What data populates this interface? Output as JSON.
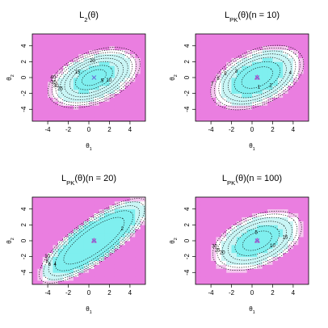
{
  "colors": {
    "low": "#7fefef",
    "mid": "#c9f5f5",
    "white": "#ffffff",
    "pink_light": "#f5c6ef",
    "pink": "#ea7ee0",
    "marker": "#6a6ad8",
    "contour": "#000000"
  },
  "chart_data": [
    {
      "type": "heatmap",
      "title_main": "L",
      "title_sub": "2",
      "title_suffix": "(θ)",
      "xlabel_main": "θ",
      "xlabel_sub": "1",
      "ylabel_main": "θ",
      "ylabel_sub": "2",
      "xlim": [
        -5.5,
        5.5
      ],
      "ylim": [
        -5.5,
        5.5
      ],
      "x_ticks": [
        -4,
        -2,
        0,
        2,
        4
      ],
      "x_tick_labels": [
        "-4",
        "-2",
        "0",
        "2",
        "4"
      ],
      "y_ticks": [
        -4,
        -2,
        0,
        2,
        4
      ],
      "y_tick_labels": [
        "-4",
        "-2",
        "0",
        "2",
        "4"
      ],
      "grid": false,
      "center": [
        0.5,
        0.0
      ],
      "marker": "x",
      "ellipse_angle_deg": 35,
      "ellipse_axis_ratio": 1.65,
      "contour_levels": [
        {
          "value": 5,
          "label": "5"
        },
        {
          "value": 10,
          "label": "10"
        },
        {
          "value": 15,
          "label": "15"
        },
        {
          "value": 20,
          "label": "20"
        },
        {
          "value": 25,
          "label": "25"
        },
        {
          "value": 30,
          "label": "30"
        },
        {
          "value": 35,
          "label": "35"
        },
        {
          "value": 40,
          "label": "40"
        }
      ],
      "contour_radii": [
        0.95,
        1.45,
        1.9,
        2.3,
        2.65,
        3.0,
        3.3,
        3.6
      ],
      "label_angles_deg": [
        -70,
        -60,
        110,
        70,
        160,
        150,
        140,
        130
      ],
      "fill_levels": [
        1.7,
        2.9,
        3.3,
        3.55
      ]
    },
    {
      "type": "heatmap",
      "title_main": "L",
      "title_sub": "PK",
      "title_suffix": "(θ)(n = 10)",
      "xlabel_main": "θ",
      "xlabel_sub": "1",
      "ylabel_main": "θ",
      "ylabel_sub": "2",
      "xlim": [
        -5.5,
        5.5
      ],
      "ylim": [
        -5.5,
        5.5
      ],
      "x_ticks": [
        -4,
        -2,
        0,
        2,
        4
      ],
      "x_tick_labels": [
        "-4",
        "-2",
        "0",
        "2",
        "4"
      ],
      "y_ticks": [
        -4,
        -2,
        0,
        2,
        4
      ],
      "y_tick_labels": [
        "-4",
        "-2",
        "0",
        "2",
        "4"
      ],
      "grid": false,
      "center": [
        0.5,
        0.0
      ],
      "marker": "x-triangle",
      "ellipse_angle_deg": 38,
      "ellipse_axis_ratio": 1.6,
      "contour_levels": [
        {
          "value": 1,
          "label": "1"
        },
        {
          "value": 2,
          "label": "2"
        },
        {
          "value": 3,
          "label": "3"
        },
        {
          "value": 4,
          "label": "4"
        },
        {
          "value": 5,
          "label": "5"
        },
        {
          "value": 6,
          "label": "6"
        },
        {
          "value": 7,
          "label": "7"
        }
      ],
      "contour_radii": [
        1.25,
        1.85,
        2.35,
        2.75,
        3.1,
        3.45,
        3.75
      ],
      "label_angles_deg": [
        -110,
        -80,
        110,
        -40,
        120,
        130,
        140
      ],
      "fill_levels": [
        2.1,
        3.1,
        3.45,
        3.7
      ]
    },
    {
      "type": "heatmap",
      "title_main": "L",
      "title_sub": "PK",
      "title_suffix": "(θ)(n = 20)",
      "xlabel_main": "θ",
      "xlabel_sub": "1",
      "ylabel_main": "θ",
      "ylabel_sub": "2",
      "xlim": [
        -5.5,
        5.5
      ],
      "ylim": [
        -5.5,
        5.5
      ],
      "x_ticks": [
        -4,
        -2,
        0,
        2,
        4
      ],
      "x_tick_labels": [
        "-4",
        "-2",
        "0",
        "2",
        "4"
      ],
      "y_ticks": [
        -4,
        -2,
        0,
        2,
        4
      ],
      "y_tick_labels": [
        "-4",
        "-2",
        "0",
        "2",
        "4"
      ],
      "grid": false,
      "center": [
        0.5,
        0.0
      ],
      "marker": "x-triangle",
      "ellipse_angle_deg": 45,
      "ellipse_axis_ratio": 3.0,
      "contour_levels": [
        {
          "value": 2,
          "label": "2"
        },
        {
          "value": 4,
          "label": "4"
        },
        {
          "value": 6,
          "label": "6"
        },
        {
          "value": 8,
          "label": "8"
        },
        {
          "value": 10,
          "label": "10"
        }
      ],
      "contour_radii": [
        2.1,
        2.7,
        3.15,
        3.5,
        3.8
      ],
      "label_angles_deg": [
        -40,
        160,
        150,
        140,
        130
      ],
      "fill_levels": [
        3.0,
        3.45,
        3.7,
        3.9
      ]
    },
    {
      "type": "heatmap",
      "title_main": "L",
      "title_sub": "PK",
      "title_suffix": "(θ)(n = 100)",
      "xlabel_main": "θ",
      "xlabel_sub": "1",
      "ylabel_main": "θ",
      "ylabel_sub": "2",
      "xlim": [
        -5.5,
        5.5
      ],
      "ylim": [
        -5.5,
        5.5
      ],
      "x_ticks": [
        -4,
        -2,
        0,
        2,
        4
      ],
      "x_tick_labels": [
        "-4",
        "-2",
        "0",
        "2",
        "4"
      ],
      "y_ticks": [
        -4,
        -2,
        0,
        2,
        4
      ],
      "y_tick_labels": [
        "-4",
        "-2",
        "0",
        "2",
        "4"
      ],
      "grid": false,
      "center": [
        0.5,
        0.0
      ],
      "marker": "x-triangle",
      "ellipse_angle_deg": 36,
      "ellipse_axis_ratio": 1.65,
      "contour_levels": [
        {
          "value": 5,
          "label": "5"
        },
        {
          "value": 10,
          "label": "10"
        },
        {
          "value": 15,
          "label": "15"
        },
        {
          "value": 20,
          "label": "20"
        },
        {
          "value": 25,
          "label": "25"
        },
        {
          "value": 30,
          "label": "30"
        }
      ],
      "contour_radii": [
        1.15,
        1.75,
        2.3,
        2.75,
        3.15,
        3.5
      ],
      "label_angles_deg": [
        70,
        -70,
        -40,
        160,
        150,
        140
      ],
      "fill_levels": [
        1.9,
        3.0,
        3.35,
        3.6
      ]
    }
  ]
}
